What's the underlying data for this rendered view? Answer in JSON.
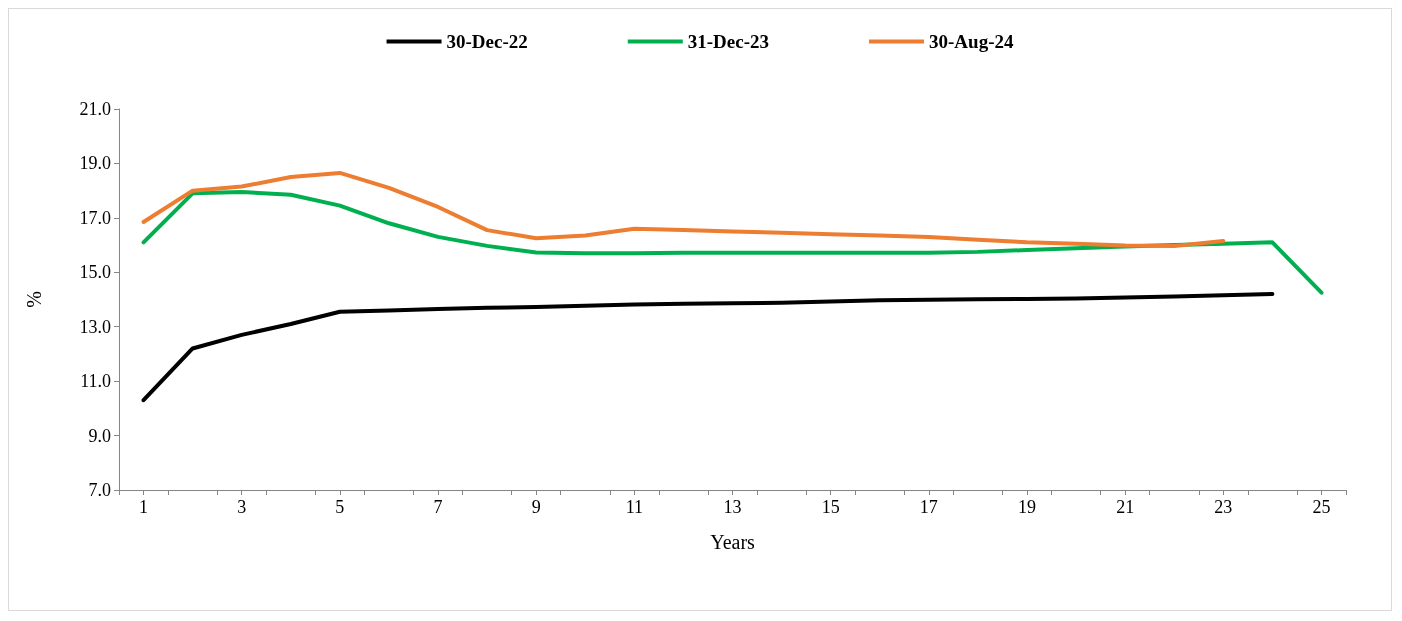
{
  "chart_data": {
    "type": "line",
    "xlabel": "Years",
    "ylabel": "%",
    "x": [
      1,
      2,
      3,
      4,
      5,
      6,
      7,
      8,
      9,
      10,
      11,
      12,
      13,
      14,
      15,
      16,
      17,
      18,
      19,
      20,
      21,
      22,
      23,
      24,
      25
    ],
    "xlim": [
      0.5,
      25.5
    ],
    "xticks": [
      {
        "value": 0.5,
        "label": null
      },
      1,
      {
        "value": 1.5,
        "label": null
      },
      {
        "value": 2.5,
        "label": null
      },
      3,
      {
        "value": 3.5,
        "label": null
      },
      {
        "value": 4.5,
        "label": null
      },
      5,
      {
        "value": 5.5,
        "label": null
      },
      {
        "value": 6.5,
        "label": null
      },
      7,
      {
        "value": 7.5,
        "label": null
      },
      {
        "value": 8.5,
        "label": null
      },
      9,
      {
        "value": 9.5,
        "label": null
      },
      {
        "value": 10.5,
        "label": null
      },
      11,
      {
        "value": 11.5,
        "label": null
      },
      {
        "value": 12.5,
        "label": null
      },
      13,
      {
        "value": 13.5,
        "label": null
      },
      {
        "value": 14.5,
        "label": null
      },
      15,
      {
        "value": 15.5,
        "label": null
      },
      {
        "value": 16.5,
        "label": null
      },
      17,
      {
        "value": 17.5,
        "label": null
      },
      {
        "value": 18.5,
        "label": null
      },
      19,
      {
        "value": 19.5,
        "label": null
      },
      {
        "value": 20.5,
        "label": null
      },
      21,
      {
        "value": 21.5,
        "label": null
      },
      {
        "value": 22.5,
        "label": null
      },
      23,
      {
        "value": 23.5,
        "label": null
      },
      {
        "value": 24.5,
        "label": null
      },
      25,
      {
        "value": 25.5,
        "label": null
      }
    ],
    "series": [
      {
        "name": "30-Dec-22",
        "color": "#000000",
        "values": [
          10.3,
          12.2,
          12.7,
          13.1,
          13.55,
          13.6,
          13.65,
          13.7,
          13.72,
          13.77,
          13.82,
          13.84,
          13.86,
          13.88,
          13.93,
          13.97,
          13.99,
          14.01,
          14.02,
          14.04,
          14.07,
          14.11,
          14.16,
          14.2,
          null
        ]
      },
      {
        "name": "31-Dec-23",
        "color": "#00b050",
        "values": [
          16.1,
          17.9,
          17.95,
          17.85,
          17.45,
          16.8,
          16.3,
          15.97,
          15.73,
          15.7,
          15.7,
          15.72,
          15.72,
          15.72,
          15.72,
          15.72,
          15.72,
          15.75,
          15.82,
          15.88,
          15.95,
          16.0,
          16.05,
          16.1,
          14.25
        ]
      },
      {
        "name": "30-Aug-24",
        "color": "#ed7d31",
        "values": [
          16.85,
          18.0,
          18.15,
          18.5,
          18.65,
          18.1,
          17.4,
          16.55,
          16.25,
          16.35,
          16.6,
          16.55,
          16.5,
          16.45,
          16.4,
          16.35,
          16.3,
          16.2,
          16.1,
          16.05,
          15.98,
          15.97,
          16.15,
          null,
          null
        ]
      }
    ],
    "ylim": [
      7,
      21
    ],
    "yticks": [
      {
        "value": 7,
        "label": "7.0"
      },
      {
        "value": 9,
        "label": "9.0"
      },
      {
        "value": 11,
        "label": "11.0"
      },
      {
        "value": 13,
        "label": "13.0"
      },
      {
        "value": 15,
        "label": "15.0"
      },
      {
        "value": 17,
        "label": "17.0"
      },
      {
        "value": 19,
        "label": "19.0"
      },
      {
        "value": 21,
        "label": "21.0"
      }
    ],
    "grid": false,
    "legend": "top",
    "marker": "none",
    "line_style": "solid"
  }
}
